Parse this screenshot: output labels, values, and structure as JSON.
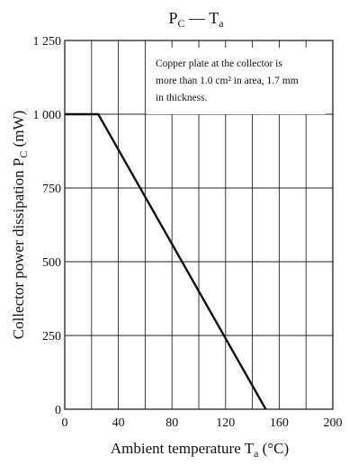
{
  "chart_data": {
    "type": "line",
    "title": {
      "main": "P",
      "main_sub": "C",
      "sep": " — ",
      "second": "T",
      "second_sub": "a"
    },
    "xlabel": {
      "text": "Ambient temperature  T",
      "sub": "a",
      "unit": "  (°C)"
    },
    "ylabel": {
      "text": "Collector power dissipation  P",
      "sub": "C",
      "unit": "  (mW)"
    },
    "x_ticks": [
      "0",
      "40",
      "80",
      "120",
      "160",
      "200"
    ],
    "y_ticks": [
      "0",
      "250",
      "500",
      "750",
      "1 000",
      "1 250"
    ],
    "xlim": [
      0,
      200
    ],
    "ylim": [
      0,
      1250
    ],
    "x_tick_values": [
      0,
      40,
      80,
      120,
      160,
      200
    ],
    "y_tick_values": [
      0,
      250,
      500,
      750,
      1000,
      1250
    ],
    "grid": {
      "x_step": 20,
      "y_step": 250
    },
    "annotation": [
      "Copper plate at the collector is",
      "more than 1.0 cm² in area, 1.7 mm",
      "in thickness."
    ],
    "series": [
      {
        "x": [
          0,
          25,
          150
        ],
        "y": [
          1000,
          1000,
          0
        ]
      }
    ],
    "colors": {
      "line": "#111111",
      "grid": "#222222"
    }
  }
}
